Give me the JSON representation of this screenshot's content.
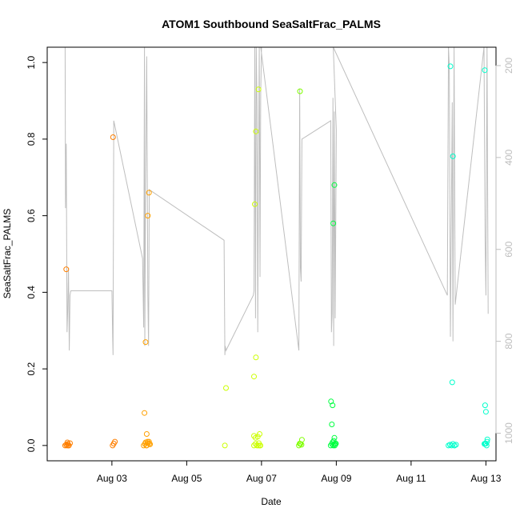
{
  "chart_data": {
    "type": "scatter",
    "title": "ATOM1 Southbound SeaSaltFrac_PALMS",
    "xlabel": "Date",
    "ylabel": "SeaSaltFrac_PALMS",
    "x_ticks": [
      "Aug 03",
      "Aug 05",
      "Aug 07",
      "Aug 09",
      "Aug 11",
      "Aug 13"
    ],
    "x_tick_days": [
      3,
      5,
      7,
      9,
      11,
      13
    ],
    "xlim": [
      1.27,
      13.27
    ],
    "ylim": [
      -0.04,
      1.04
    ],
    "y_ticks": [
      0.0,
      0.2,
      0.4,
      0.6,
      0.8,
      1.0
    ],
    "y_tick_labels": [
      "0.0",
      "0.2",
      "0.4",
      "0.6",
      "0.8",
      "1.0"
    ],
    "y2_ticks": [
      200,
      400,
      600,
      800,
      1000
    ],
    "y2_tick_labels": [
      "200",
      "400",
      "600",
      "800",
      "1000"
    ],
    "y2lim": [
      1060,
      160
    ],
    "y2_label": "",
    "grid": false,
    "legend": "none",
    "colors": {
      "pressure_line": "#bebebe",
      "axis": "#000000",
      "right_axis": "#bebebe",
      "point_palette": [
        "#ff7f00",
        "#ffa000",
        "#f0f000",
        "#ccff00",
        "#7fff00",
        "#00ff40",
        "#00ffa0",
        "#00ffcc"
      ]
    },
    "series": [
      {
        "kind": "points",
        "x_day": [
          1.75,
          1.78,
          1.8,
          1.82,
          1.85,
          1.88,
          1.78,
          1.81,
          1.84,
          3.02,
          3.05,
          3.08,
          3.03,
          3.85,
          3.88,
          3.9,
          3.93,
          3.96,
          3.99,
          4.02,
          3.87,
          3.9,
          3.93,
          3.96,
          3.99,
          3.92,
          3.95,
          4.0,
          6.02,
          6.05,
          6.8,
          6.84,
          6.88,
          6.93,
          6.97,
          6.8,
          6.84,
          6.9,
          6.95,
          6.82,
          6.85,
          6.92,
          6.96,
          6.8,
          6.85,
          6.92,
          8.0,
          8.04,
          8.08,
          8.03,
          8.07,
          8.02,
          8.85,
          8.88,
          8.9,
          8.93,
          8.96,
          8.99,
          8.86,
          8.9,
          8.95,
          8.92,
          8.95,
          8.88,
          8.92,
          8.95,
          8.97,
          12.0,
          12.04,
          12.08,
          12.12,
          12.16,
          12.2,
          12.05,
          12.12,
          12.1,
          12.16,
          12.96,
          13.0,
          13.04,
          12.98,
          13.0,
          12.97,
          13.02,
          12.98,
          13.03
        ],
        "y": [
          0.0,
          0.002,
          0.0,
          0.004,
          0.0,
          0.006,
          0.46,
          0.008,
          0.0,
          0.0,
          0.005,
          0.01,
          0.805,
          0.0,
          0.004,
          0.008,
          0.0,
          0.006,
          0.01,
          0.003,
          0.085,
          0.27,
          0.03,
          0.6,
          0.66,
          0.0,
          0.01,
          0.005,
          0.0,
          0.15,
          0.0,
          0.004,
          0.0,
          0.006,
          0.0,
          0.18,
          0.02,
          0.023,
          0.03,
          0.63,
          0.82,
          0.93,
          0.0,
          0.025,
          0.23,
          0.0,
          0.0,
          0.004,
          0.015,
          0.925,
          0.002,
          0.005,
          0.0,
          0.004,
          0.008,
          0.012,
          0.0,
          0.005,
          0.115,
          0.105,
          0.02,
          0.58,
          0.68,
          0.055,
          0.0,
          0.003,
          0.005,
          0.0,
          0.002,
          0.0,
          0.004,
          0.0,
          0.002,
          0.99,
          0.755,
          0.165,
          0.0,
          0.004,
          0.005,
          0.016,
          0.105,
          0.088,
          0.98,
          0.0,
          0.005,
          0.01
        ]
      },
      {
        "kind": "pressure_line",
        "x_day": [
          1.75,
          1.76,
          1.78,
          1.8,
          1.82,
          1.84,
          1.86,
          1.88,
          1.9,
          3.0,
          3.02,
          3.03,
          3.05,
          3.82,
          3.85,
          3.87,
          3.88,
          3.9,
          3.93,
          3.96,
          3.98,
          4.0,
          6.0,
          6.02,
          6.03,
          6.05,
          6.78,
          6.8,
          6.82,
          6.84,
          6.86,
          6.88,
          6.9,
          6.92,
          6.94,
          6.96,
          6.98,
          7.0,
          6.98,
          8.0,
          8.02,
          8.04,
          8.06,
          8.08,
          8.85,
          8.87,
          8.89,
          8.91,
          8.93,
          8.95,
          8.97,
          9.0,
          8.92,
          11.97,
          12.0,
          12.02,
          12.05,
          12.08,
          12.1,
          12.12,
          12.15,
          12.18,
          12.95,
          12.98,
          13.0,
          13.03,
          13.06
        ],
        "pressure": [
          160,
          510,
          370,
          780,
          730,
          640,
          820,
          700,
          690,
          690,
          790,
          830,
          320,
          620,
          770,
          160,
          810,
          460,
          180,
          700,
          810,
          470,
          580,
          830,
          810,
          820,
          700,
          690,
          160,
          750,
          160,
          290,
          780,
          420,
          160,
          660,
          260,
          160,
          160,
          820,
          250,
          640,
          670,
          360,
          320,
          780,
          740,
          270,
          810,
          300,
          750,
          340,
          160,
          700,
          160,
          200,
          790,
          480,
          280,
          800,
          160,
          720,
          160,
          580,
          700,
          160,
          740
        ]
      }
    ]
  }
}
